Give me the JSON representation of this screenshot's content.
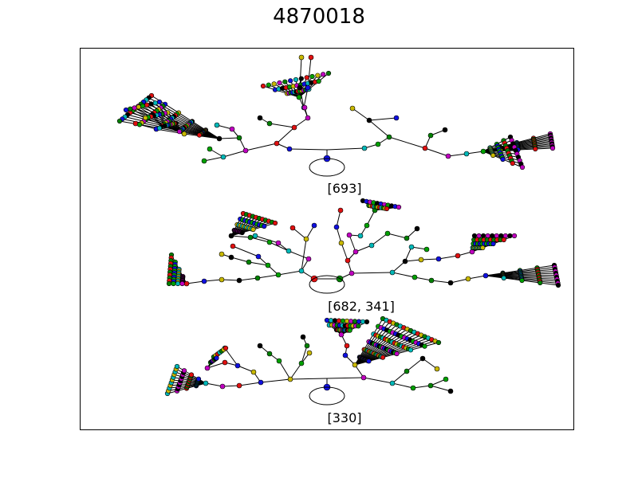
{
  "figure": {
    "title": "4870018"
  },
  "palette": [
    "#1010e0",
    "#00b8b8",
    "#000000",
    "#e01010",
    "#00a000",
    "#c8b800",
    "#c000c0",
    "#008000"
  ],
  "graphs": [
    {
      "label": "[693]",
      "root_colors": [
        "#1010e0"
      ]
    },
    {
      "label": "[682, 341]",
      "root_colors": [
        "#e01010",
        "#008000"
      ]
    },
    {
      "label": "[330]",
      "root_colors": [
        "#1010e0"
      ]
    }
  ]
}
